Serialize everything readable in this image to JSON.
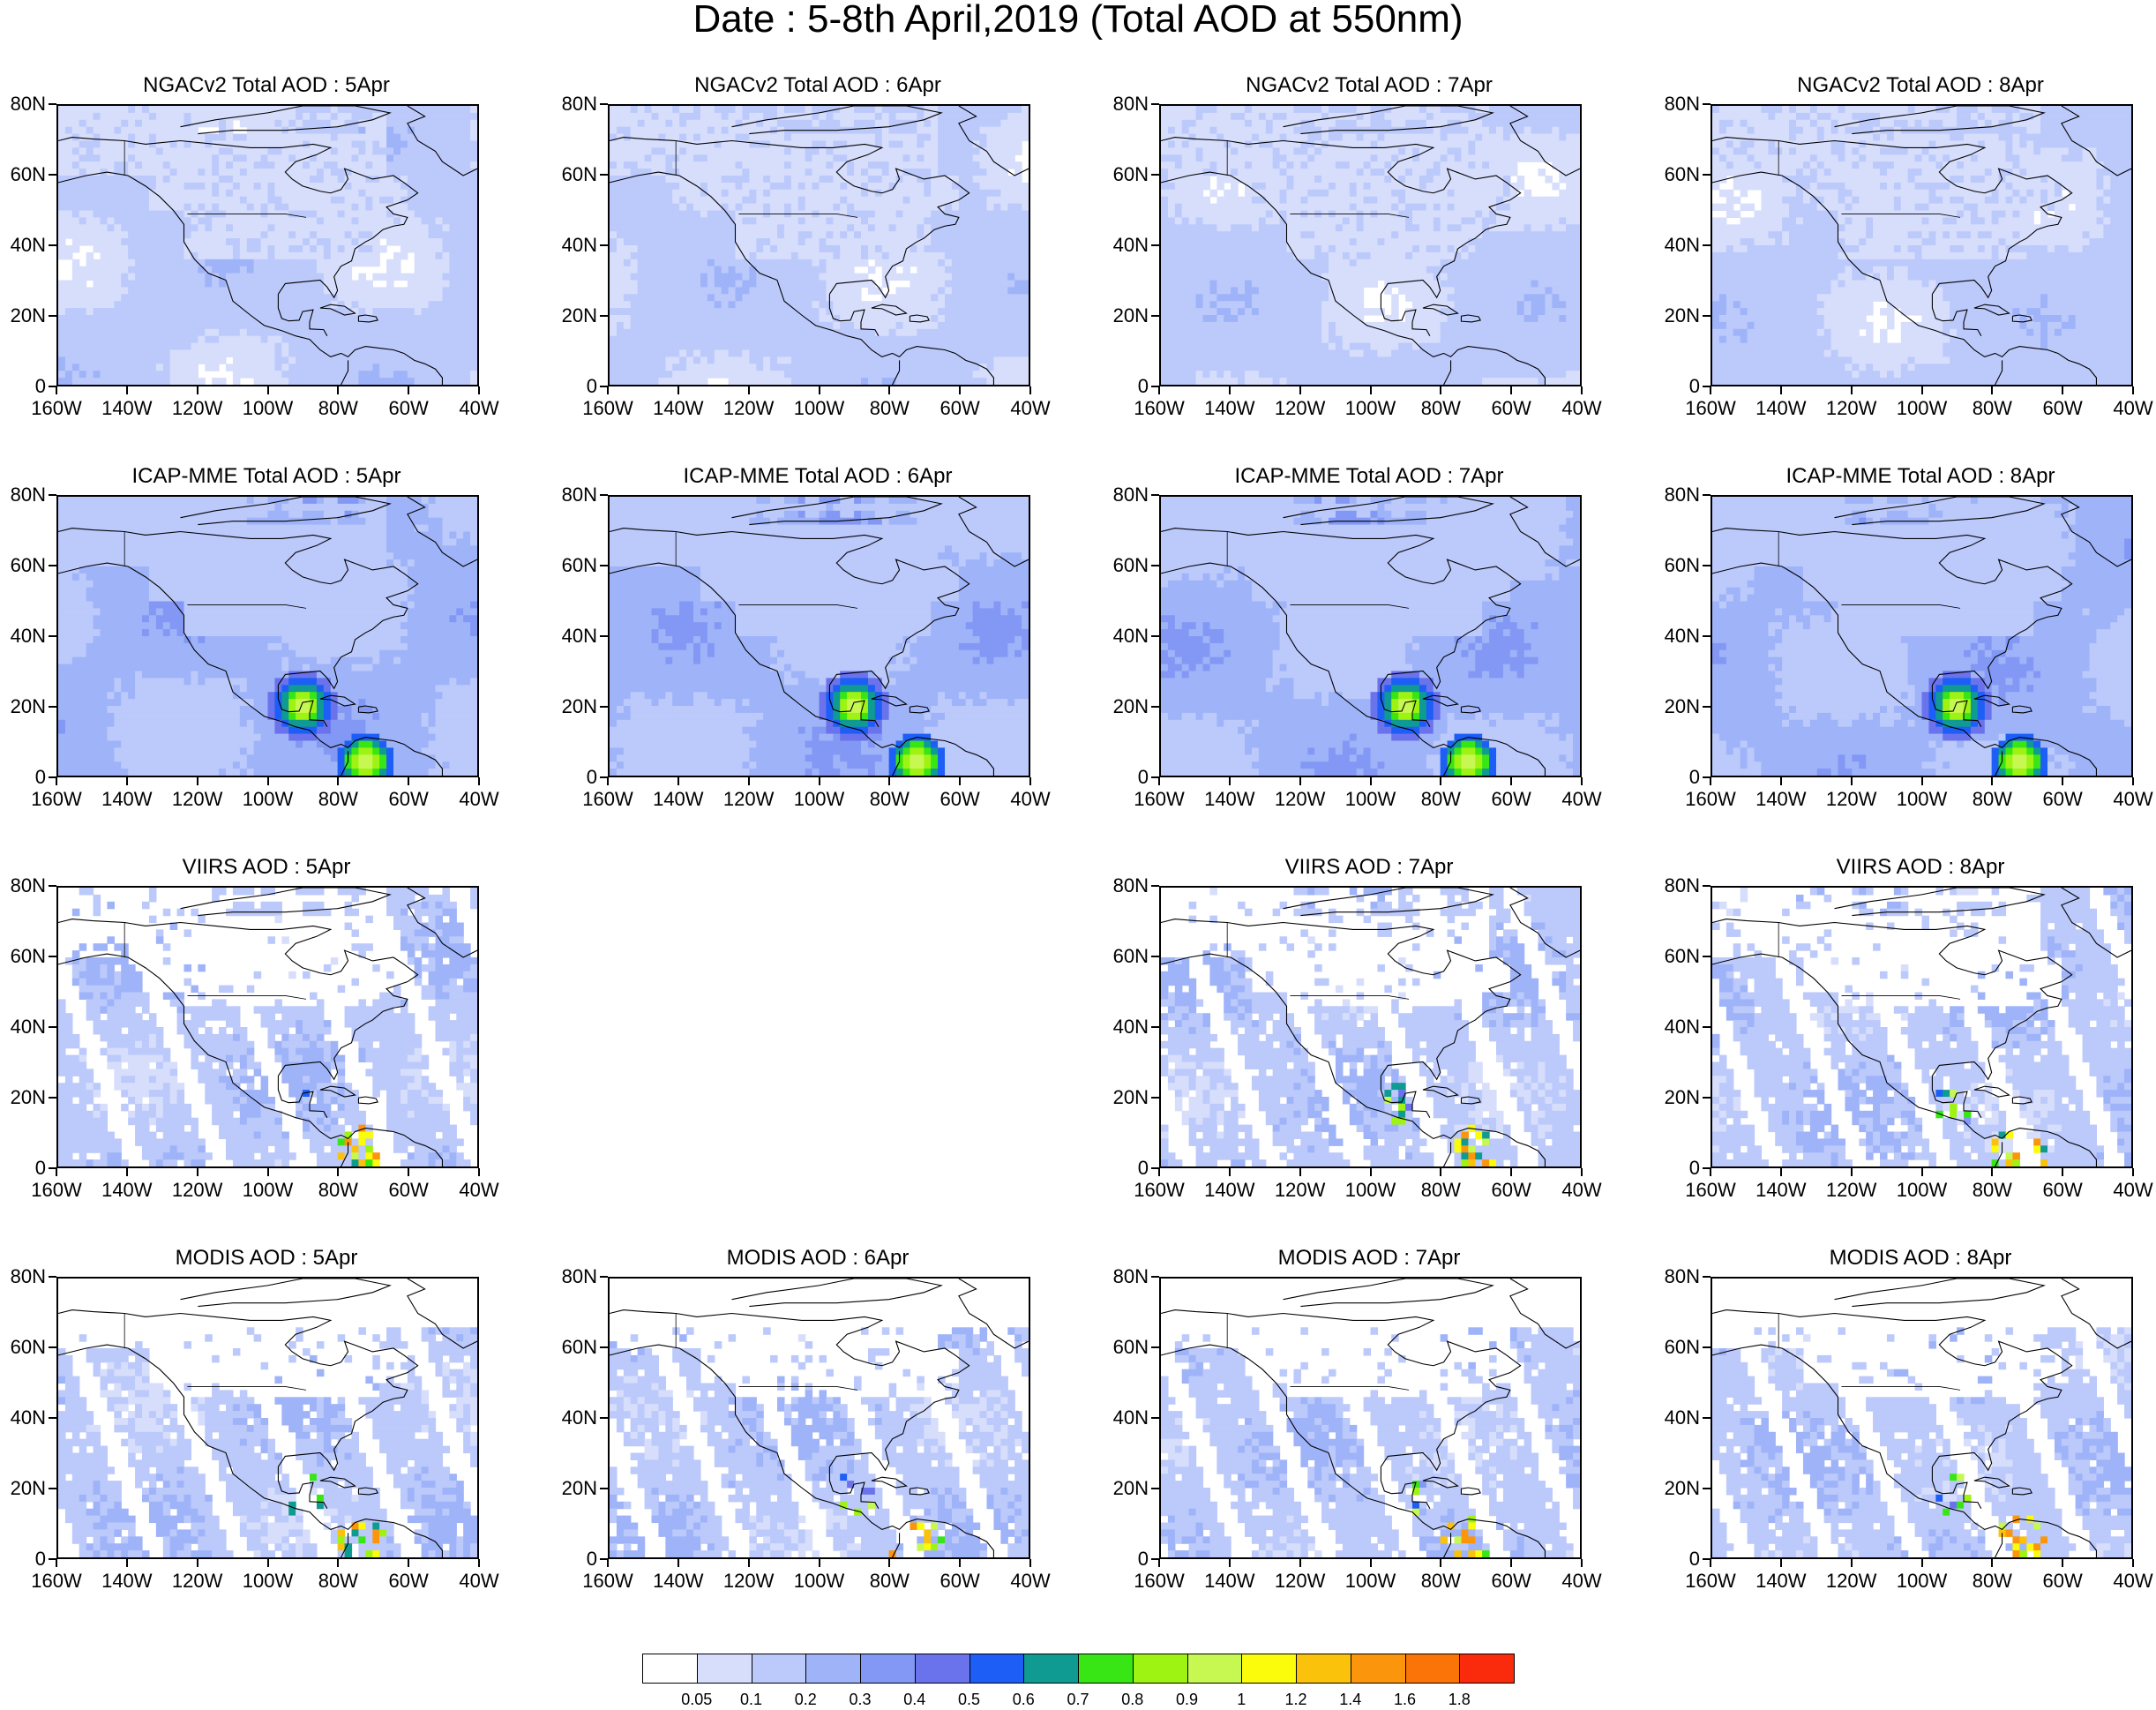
{
  "title": "Date : 5-8th April,2019 (Total AOD at 550nm)",
  "axes": {
    "y_ticks": [
      "80N",
      "60N",
      "40N",
      "20N",
      "0"
    ],
    "x_ticks": [
      "160W",
      "140W",
      "120W",
      "100W",
      "80W",
      "60W",
      "40W"
    ],
    "lon_range": [
      -160,
      -40
    ],
    "lat_range": [
      0,
      80
    ]
  },
  "panels": [
    {
      "title": "NGACv2 Total AOD : 5Apr",
      "row": 0,
      "col": 0,
      "kind": "model",
      "level": 0.35
    },
    {
      "title": "NGACv2 Total AOD : 6Apr",
      "row": 0,
      "col": 1,
      "kind": "model",
      "level": 0.4
    },
    {
      "title": "NGACv2 Total AOD : 7Apr",
      "row": 0,
      "col": 2,
      "kind": "model",
      "level": 0.3
    },
    {
      "title": "NGACv2 Total AOD : 8Apr",
      "row": 0,
      "col": 3,
      "kind": "model",
      "level": 0.35
    },
    {
      "title": "ICAP-MME Total AOD : 5Apr",
      "row": 1,
      "col": 0,
      "kind": "icap",
      "level": 0.6
    },
    {
      "title": "ICAP-MME Total AOD : 6Apr",
      "row": 1,
      "col": 1,
      "kind": "icap",
      "level": 0.6
    },
    {
      "title": "ICAP-MME Total AOD : 7Apr",
      "row": 1,
      "col": 2,
      "kind": "icap",
      "level": 0.6
    },
    {
      "title": "ICAP-MME Total AOD : 8Apr",
      "row": 1,
      "col": 3,
      "kind": "icap",
      "level": 0.6
    },
    {
      "title": "VIIRS AOD : 5Apr",
      "row": 2,
      "col": 0,
      "kind": "sat",
      "level": 0.3
    },
    {
      "title": "VIIRS AOD : 7Apr",
      "row": 2,
      "col": 2,
      "kind": "sat",
      "level": 0.3
    },
    {
      "title": "VIIRS AOD : 8Apr",
      "row": 2,
      "col": 3,
      "kind": "sat",
      "level": 0.3
    },
    {
      "title": "MODIS AOD : 5Apr",
      "row": 3,
      "col": 0,
      "kind": "sat2",
      "level": 0.3
    },
    {
      "title": "MODIS AOD : 6Apr",
      "row": 3,
      "col": 1,
      "kind": "sat2",
      "level": 0.3
    },
    {
      "title": "MODIS AOD : 7Apr",
      "row": 3,
      "col": 2,
      "kind": "sat2",
      "level": 0.3
    },
    {
      "title": "MODIS AOD : 8Apr",
      "row": 3,
      "col": 3,
      "kind": "sat2",
      "level": 0.3
    }
  ],
  "colorbar": {
    "labels": [
      "0.05",
      "0.1",
      "0.2",
      "0.3",
      "0.4",
      "0.5",
      "0.6",
      "0.7",
      "0.8",
      "0.9",
      "1",
      "1.2",
      "1.4",
      "1.6",
      "1.8"
    ],
    "colors": [
      "#ffffff",
      "#d7defc",
      "#bcc9fb",
      "#9fb3f9",
      "#8298f4",
      "#6b73ec",
      "#1c5ef6",
      "#0f9a92",
      "#37e614",
      "#9ef313",
      "#c7f852",
      "#fbfb0c",
      "#fbc20b",
      "#fb960c",
      "#fb7408",
      "#fa2b0c"
    ]
  }
}
